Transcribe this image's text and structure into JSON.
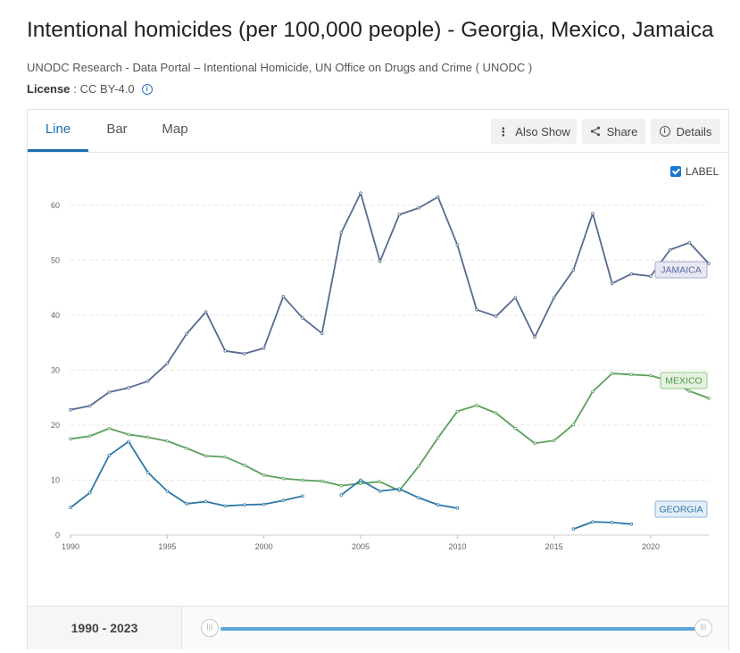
{
  "header": {
    "title": "Intentional homicides (per 100,000 people) - Georgia, Mexico, Jamaica",
    "source": "UNODC Research - Data Portal – Intentional Homicide, UN Office on Drugs and Crime ( UNODC )",
    "license_label": "License",
    "license_value": ": CC BY-4.0",
    "info_icon": "info-icon"
  },
  "tabs": [
    {
      "label": "Line",
      "active": true
    },
    {
      "label": "Bar",
      "active": false
    },
    {
      "label": "Map",
      "active": false
    }
  ],
  "toolbar": {
    "also_show_label": "Also Show",
    "share_label": "Share",
    "details_label": "Details"
  },
  "label_toggle": {
    "label": "LABEL",
    "checked": true
  },
  "range": {
    "label": "1990 - 2023",
    "start": 1990,
    "end": 2023
  },
  "colors": {
    "jamaica": "#566a92",
    "mexico": "#5ca05c",
    "georgia": "#2b78a8",
    "accent": "#1d6fb0"
  },
  "chart_data": {
    "type": "line",
    "title": "",
    "xlabel": "",
    "ylabel": "",
    "xlim": [
      1990,
      2023
    ],
    "ylim": [
      0,
      65
    ],
    "x_ticks": [
      1990,
      1995,
      2000,
      2005,
      2010,
      2015,
      2020
    ],
    "y_ticks": [
      0,
      10,
      20,
      30,
      40,
      50,
      60
    ],
    "grid": true,
    "series": [
      {
        "name": "JAMAICA",
        "color": "#566a92",
        "points": [
          [
            1990,
            22.8
          ],
          [
            1991,
            23.5
          ],
          [
            1992,
            26.0
          ],
          [
            1993,
            26.8
          ],
          [
            1994,
            28.0
          ],
          [
            1995,
            31.2
          ],
          [
            1996,
            36.6
          ],
          [
            1997,
            40.6
          ],
          [
            1998,
            33.5
          ],
          [
            1999,
            33.0
          ],
          [
            2000,
            34.0
          ],
          [
            2001,
            43.4
          ],
          [
            2002,
            39.5
          ],
          [
            2003,
            36.7
          ],
          [
            2004,
            55.0
          ],
          [
            2005,
            62.2
          ],
          [
            2006,
            49.8
          ],
          [
            2007,
            58.3
          ],
          [
            2008,
            59.5
          ],
          [
            2009,
            61.5
          ],
          [
            2010,
            52.8
          ],
          [
            2011,
            41.0
          ],
          [
            2012,
            39.8
          ],
          [
            2013,
            43.2
          ],
          [
            2014,
            36.0
          ],
          [
            2015,
            43.2
          ],
          [
            2016,
            48.2
          ],
          [
            2017,
            58.5
          ],
          [
            2018,
            45.8
          ],
          [
            2019,
            47.5
          ],
          [
            2020,
            47.1
          ],
          [
            2021,
            51.9
          ],
          [
            2022,
            53.2
          ],
          [
            2023,
            49.4
          ]
        ]
      },
      {
        "name": "MEXICO",
        "color": "#5ca05c",
        "points": [
          [
            1990,
            17.5
          ],
          [
            1991,
            18.0
          ],
          [
            1992,
            19.4
          ],
          [
            1993,
            18.3
          ],
          [
            1994,
            17.8
          ],
          [
            1995,
            17.1
          ],
          [
            1996,
            15.8
          ],
          [
            1997,
            14.4
          ],
          [
            1998,
            14.2
          ],
          [
            1999,
            12.7
          ],
          [
            2000,
            10.9
          ],
          [
            2001,
            10.3
          ],
          [
            2002,
            10.0
          ],
          [
            2003,
            9.8
          ],
          [
            2004,
            9.0
          ],
          [
            2005,
            9.4
          ],
          [
            2006,
            9.7
          ],
          [
            2007,
            8.1
          ],
          [
            2008,
            12.5
          ],
          [
            2009,
            17.7
          ],
          [
            2010,
            22.5
          ],
          [
            2011,
            23.6
          ],
          [
            2012,
            22.2
          ],
          [
            2013,
            19.4
          ],
          [
            2014,
            16.7
          ],
          [
            2015,
            17.2
          ],
          [
            2016,
            20.1
          ],
          [
            2017,
            26.1
          ],
          [
            2018,
            29.4
          ],
          [
            2019,
            29.2
          ],
          [
            2020,
            29.0
          ],
          [
            2021,
            28.0
          ],
          [
            2022,
            26.2
          ],
          [
            2023,
            24.9
          ]
        ]
      },
      {
        "name": "GEORGIA",
        "color": "#2b78a8",
        "points": [
          [
            1990,
            5.0
          ],
          [
            1991,
            7.7
          ],
          [
            1992,
            14.5
          ],
          [
            1993,
            17.0
          ],
          [
            1994,
            11.4
          ],
          [
            1995,
            8.0
          ],
          [
            1996,
            5.7
          ],
          [
            1997,
            6.1
          ],
          [
            1998,
            5.3
          ],
          [
            1999,
            5.5
          ],
          [
            2000,
            5.6
          ],
          [
            2001,
            6.3
          ],
          [
            2002,
            7.1
          ],
          [
            2003,
            null
          ],
          [
            2004,
            7.3
          ],
          [
            2005,
            10.0
          ],
          [
            2006,
            8.0
          ],
          [
            2007,
            8.4
          ],
          [
            2008,
            6.8
          ],
          [
            2009,
            5.5
          ],
          [
            2010,
            4.9
          ],
          [
            2011,
            null
          ],
          [
            2012,
            null
          ],
          [
            2013,
            null
          ],
          [
            2014,
            null
          ],
          [
            2015,
            null
          ],
          [
            2016,
            1.1
          ],
          [
            2017,
            2.4
          ],
          [
            2018,
            2.3
          ],
          [
            2019,
            2.0
          ]
        ]
      }
    ]
  }
}
